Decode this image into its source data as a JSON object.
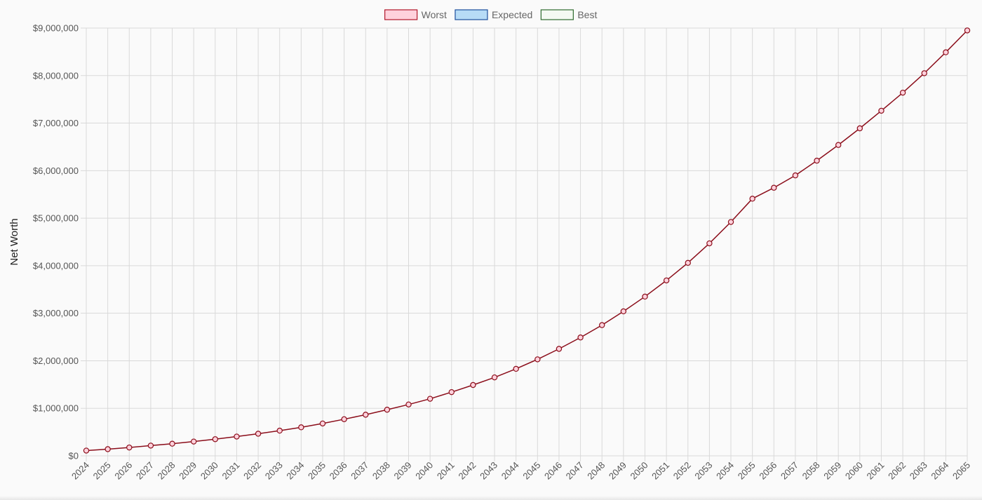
{
  "chart_data": {
    "type": "line",
    "ylabel": "Net Worth",
    "xlabel": "",
    "ylim": [
      0,
      9000000
    ],
    "y_ticks": [
      0,
      1000000,
      2000000,
      3000000,
      4000000,
      5000000,
      6000000,
      7000000,
      8000000,
      9000000
    ],
    "y_tick_labels": [
      "$0",
      "$1,000,000",
      "$2,000,000",
      "$3,000,000",
      "$4,000,000",
      "$5,000,000",
      "$6,000,000",
      "$7,000,000",
      "$8,000,000",
      "$9,000,000"
    ],
    "grid": true,
    "legend_position": "top-center",
    "legend": [
      {
        "name": "Worst",
        "fill": "#ffd1dc",
        "stroke": "#b0172a"
      },
      {
        "name": "Expected",
        "fill": "#b7dcf6",
        "stroke": "#1d4f9c"
      },
      {
        "name": "Best",
        "fill": "#f4faf2",
        "stroke": "#2e6b2e"
      }
    ],
    "x": [
      "2024",
      "2025",
      "2026",
      "2027",
      "2028",
      "2029",
      "2030",
      "2031",
      "2032",
      "2033",
      "2034",
      "2035",
      "2036",
      "2037",
      "2038",
      "2039",
      "2040",
      "2041",
      "2042",
      "2043",
      "2044",
      "2045",
      "2046",
      "2047",
      "2048",
      "2049",
      "2050",
      "2051",
      "2052",
      "2053",
      "2054",
      "2055",
      "2056",
      "2057",
      "2058",
      "2059",
      "2060",
      "2061",
      "2062",
      "2063",
      "2064",
      "2065"
    ],
    "series": [
      {
        "name": "Worst",
        "line_color": "#8b0d1a",
        "point_fill": "#ffd1dc",
        "values": [
          110000,
          140000,
          175000,
          215000,
          255000,
          300000,
          350000,
          405000,
          465000,
          530000,
          600000,
          680000,
          770000,
          865000,
          970000,
          1080000,
          1200000,
          1340000,
          1490000,
          1650000,
          1830000,
          2030000,
          2250000,
          2490000,
          2750000,
          3040000,
          3350000,
          3690000,
          4060000,
          4470000,
          4920000,
          5410000,
          5640000,
          5900000,
          6210000,
          6540000,
          6890000,
          7260000,
          7640000,
          8050000,
          8490000,
          8950000
        ]
      }
    ]
  }
}
